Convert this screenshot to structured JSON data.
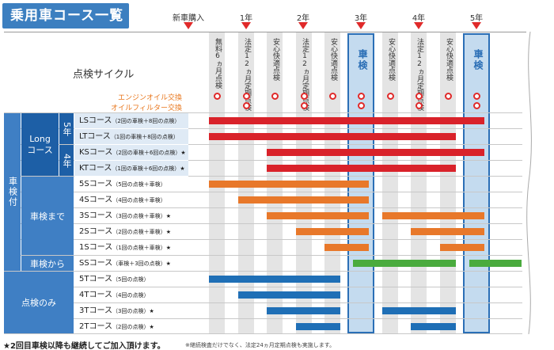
{
  "title": "乗用車コース一覧",
  "timeline": [
    "新車購入",
    "1年",
    "2年",
    "3年",
    "4年",
    "5年"
  ],
  "cycle_label": "点検サイクル",
  "oil_labels": {
    "engine_oil": "エンジンオイル交換",
    "oil_filter": "オイルフィルター交換"
  },
  "columns": [
    "無料6ヵ月点検",
    "法定12ヵ月定期点検",
    "安心快適点検",
    "法定12ヵ月定期点検",
    "安心快適点検",
    "車検",
    "安心快適点検",
    "法定12ヵ月定期点検",
    "安心快適点検",
    "車検"
  ],
  "column_note_mark": "※",
  "groups": {
    "shaken_tsuki": "車検付",
    "long_course": "Longコース",
    "five_year": "5年",
    "four_year": "4年",
    "shaken_made": "車検まで",
    "shaken_kara": "車検から",
    "tenken_nomi": "点検のみ"
  },
  "courses": [
    {
      "name": "LSコース",
      "detail": "（2回の車検＋8回の点検）",
      "mark": ""
    },
    {
      "name": "LTコース",
      "detail": "（1回の車検＋8回の点検）",
      "mark": ""
    },
    {
      "name": "KSコース",
      "detail": "（2回の車検＋6回の点検）",
      "mark": "★"
    },
    {
      "name": "KTコース",
      "detail": "（1回の車検＋6回の点検）",
      "mark": "★"
    },
    {
      "name": "5Sコース",
      "detail": "（5回の点検＋車検）",
      "mark": ""
    },
    {
      "name": "4Sコース",
      "detail": "（4回の点検＋車検）",
      "mark": ""
    },
    {
      "name": "3Sコース",
      "detail": "（3回の点検＋車検）",
      "mark": "★"
    },
    {
      "name": "2Sコース",
      "detail": "（2回の点検＋車検）",
      "mark": "★"
    },
    {
      "name": "1Sコース",
      "detail": "（1回の点検＋車検）",
      "mark": "★"
    },
    {
      "name": "SSコース",
      "detail": "（車検＋3回の点検）",
      "mark": "★"
    },
    {
      "name": "5Tコース",
      "detail": "（5回の点検）",
      "mark": ""
    },
    {
      "name": "4Tコース",
      "detail": "（4回の点検）",
      "mark": ""
    },
    {
      "name": "3Tコース",
      "detail": "（3回の点検）",
      "mark": "★"
    },
    {
      "name": "2Tコース",
      "detail": "（2回の点検）",
      "mark": "★"
    }
  ],
  "footer": {
    "main": "★2回目車検以降も継続してご加入頂けます。",
    "note": "※継続検査だけでなく、法定24ヵ月定期点検も実施します。"
  },
  "colors": {
    "long": "#d9222a",
    "made": "#e8782a",
    "kara": "#4aab3e",
    "nomi": "#1f6fb6",
    "group_dark": "#1d5fa6",
    "group_light": "#3f7fc4"
  }
}
